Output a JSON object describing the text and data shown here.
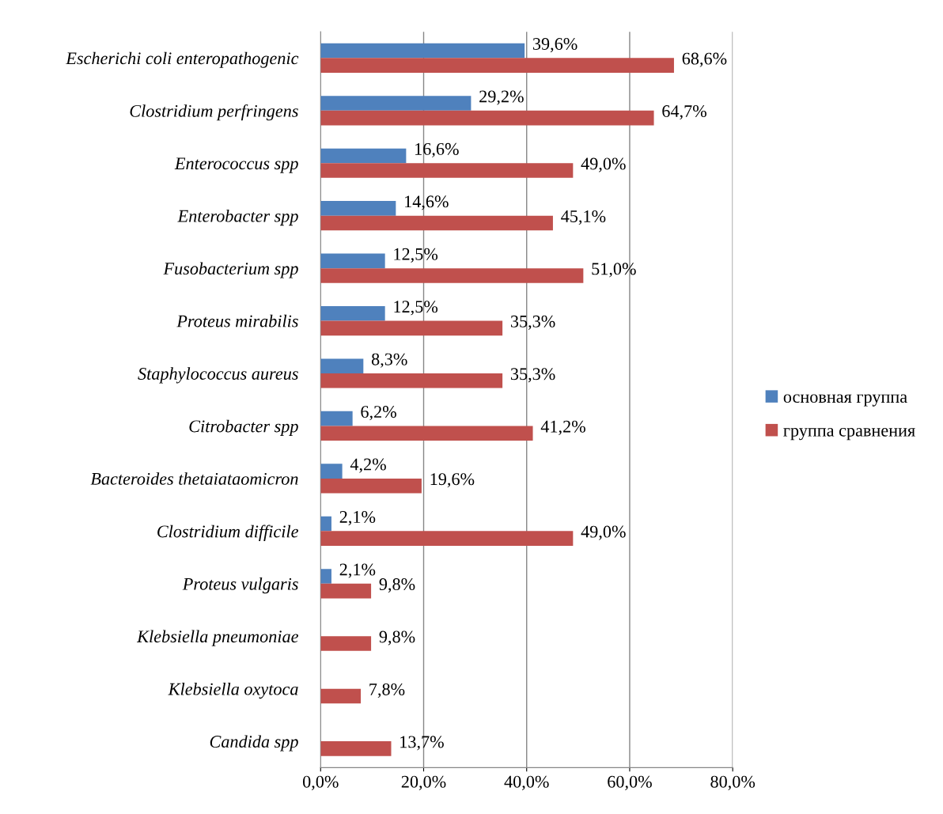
{
  "chart_data": {
    "type": "bar",
    "orientation": "horizontal",
    "categories": [
      "Escherichi coli enteropathogenic",
      "Clostridium perfringens",
      "Enterococcus spp",
      "Enterobacter spp",
      "Fusobacterium spp",
      "Proteus mirabilis",
      "Staphylococcus aureus",
      "Citrobacter spp",
      "Bacteroides thetaiataomicron",
      "Clostridium difficile",
      "Proteus vulgaris",
      "Klebsiella pneumoniae",
      "Klebsiella oxytoca",
      "Candida spp"
    ],
    "series": [
      {
        "name": "основная группа",
        "color": "#4f81bd",
        "values": [
          39.6,
          29.2,
          16.6,
          14.6,
          12.5,
          12.5,
          8.3,
          6.2,
          4.2,
          2.1,
          2.1,
          null,
          null,
          null
        ],
        "value_labels": [
          "39,6%",
          "29,2%",
          "16,6%",
          "14,6%",
          "12,5%",
          "12,5%",
          "8,3%",
          "6,2%",
          "4,2%",
          "2,1%",
          "2,1%",
          null,
          null,
          null
        ]
      },
      {
        "name": "группа сравнения",
        "color": "#c0504d",
        "values": [
          68.6,
          64.7,
          49.0,
          45.1,
          51.0,
          35.3,
          35.3,
          41.2,
          19.6,
          49.0,
          9.8,
          9.8,
          7.8,
          13.7
        ],
        "value_labels": [
          "68,6%",
          "64,7%",
          "49,0%",
          "45,1%",
          "51,0%",
          "35,3%",
          "35,3%",
          "41,2%",
          "19,6%",
          "49,0%",
          "9,8%",
          "9,8%",
          "7,8%",
          "13,7%"
        ]
      }
    ],
    "xlim": [
      0,
      80
    ],
    "xticks": [
      {
        "value": 0,
        "label": "0,0%"
      },
      {
        "value": 20,
        "label": "20,0%"
      },
      {
        "value": 40,
        "label": "40,0%"
      },
      {
        "value": 60,
        "label": "60,0%"
      },
      {
        "value": 80,
        "label": "80,0%"
      }
    ],
    "grid": "x",
    "legend": "right"
  }
}
